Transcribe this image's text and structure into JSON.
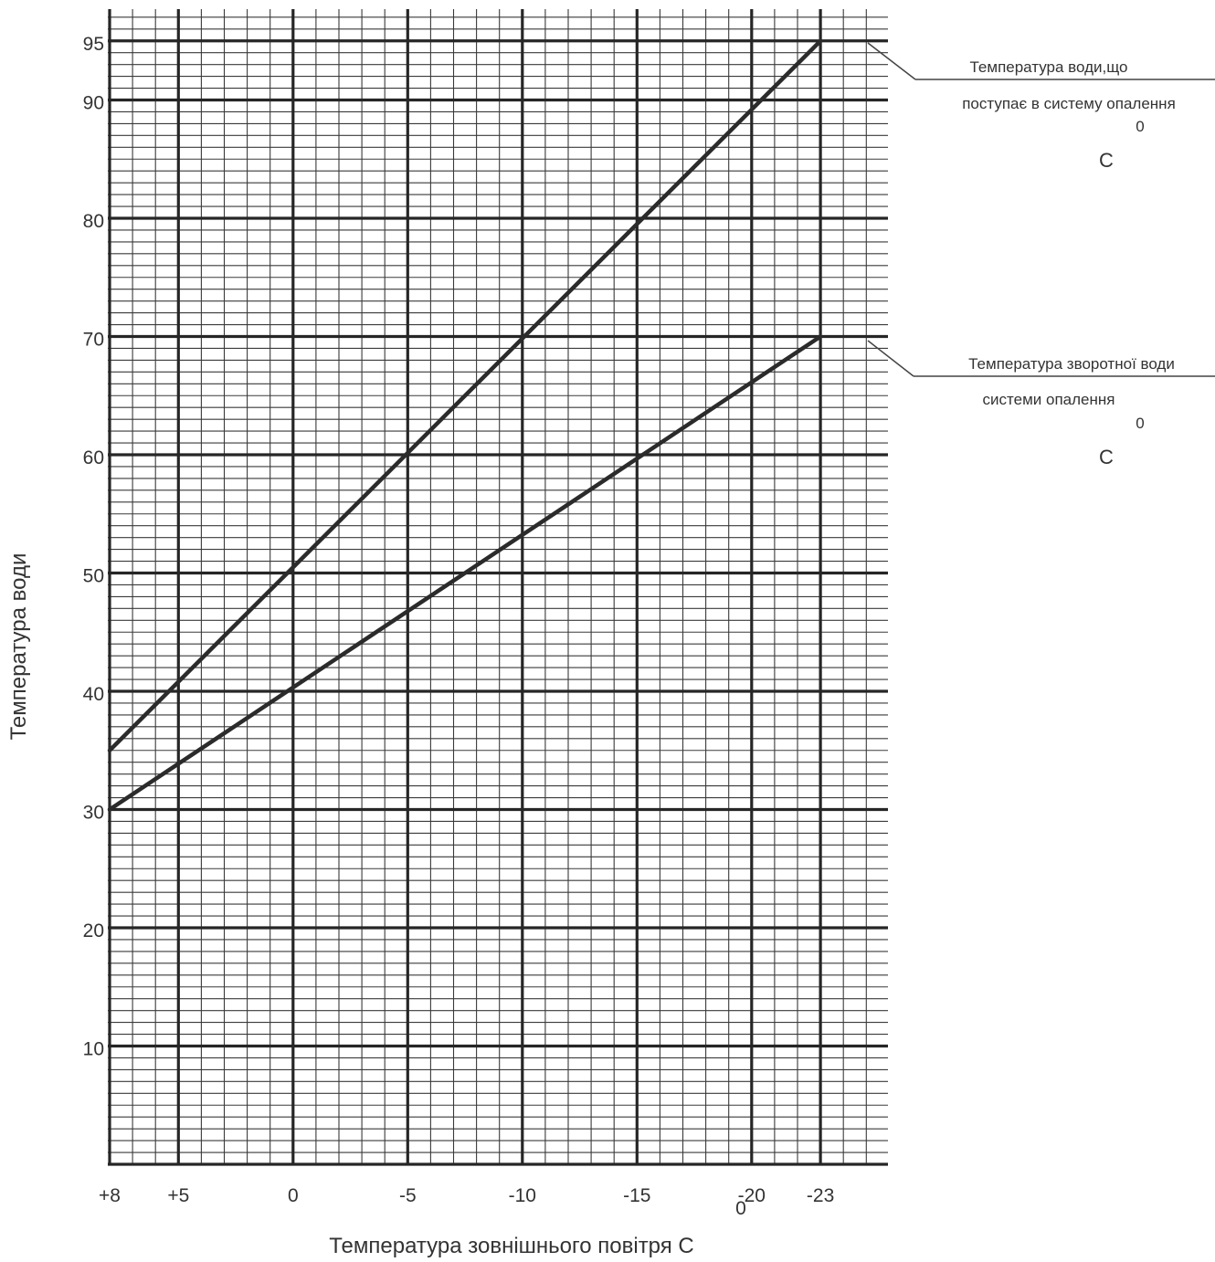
{
  "chart_data": {
    "type": "line",
    "xlabel": "Температура зовнішнього повітря C",
    "xlabel_unit_superscript": "0",
    "ylabel": "Температура води",
    "x_ticks": [
      {
        "value": 8,
        "label": "+8"
      },
      {
        "value": 5,
        "label": "+5"
      },
      {
        "value": 0,
        "label": "0"
      },
      {
        "value": -5,
        "label": "-5"
      },
      {
        "value": -10,
        "label": "-10"
      },
      {
        "value": -15,
        "label": "-15"
      },
      {
        "value": -20,
        "label": "-20"
      },
      {
        "value": -23,
        "label": "-23"
      }
    ],
    "y_ticks": [
      {
        "value": 10,
        "label": "10"
      },
      {
        "value": 20,
        "label": "20"
      },
      {
        "value": 30,
        "label": "30"
      },
      {
        "value": 40,
        "label": "40"
      },
      {
        "value": 50,
        "label": "50"
      },
      {
        "value": 60,
        "label": "60"
      },
      {
        "value": 70,
        "label": "70"
      },
      {
        "value": 80,
        "label": "80"
      },
      {
        "value": 90,
        "label": "90"
      },
      {
        "value": 95,
        "label": "95"
      }
    ],
    "xlim": [
      8,
      -24
    ],
    "ylim": [
      0,
      97
    ],
    "x_reversed": true,
    "grid": true,
    "series": [
      {
        "name_lines": [
          "Температура води,що",
          "поступає в систему опалення"
        ],
        "unit_sup": "0",
        "unit": "C",
        "x": [
          8,
          -23
        ],
        "y": [
          35,
          95
        ]
      },
      {
        "name_lines": [
          "Температура зворотної води",
          "системи опалення"
        ],
        "unit_sup": "0",
        "unit": "C",
        "x": [
          8,
          -23
        ],
        "y": [
          30,
          70
        ]
      }
    ]
  }
}
